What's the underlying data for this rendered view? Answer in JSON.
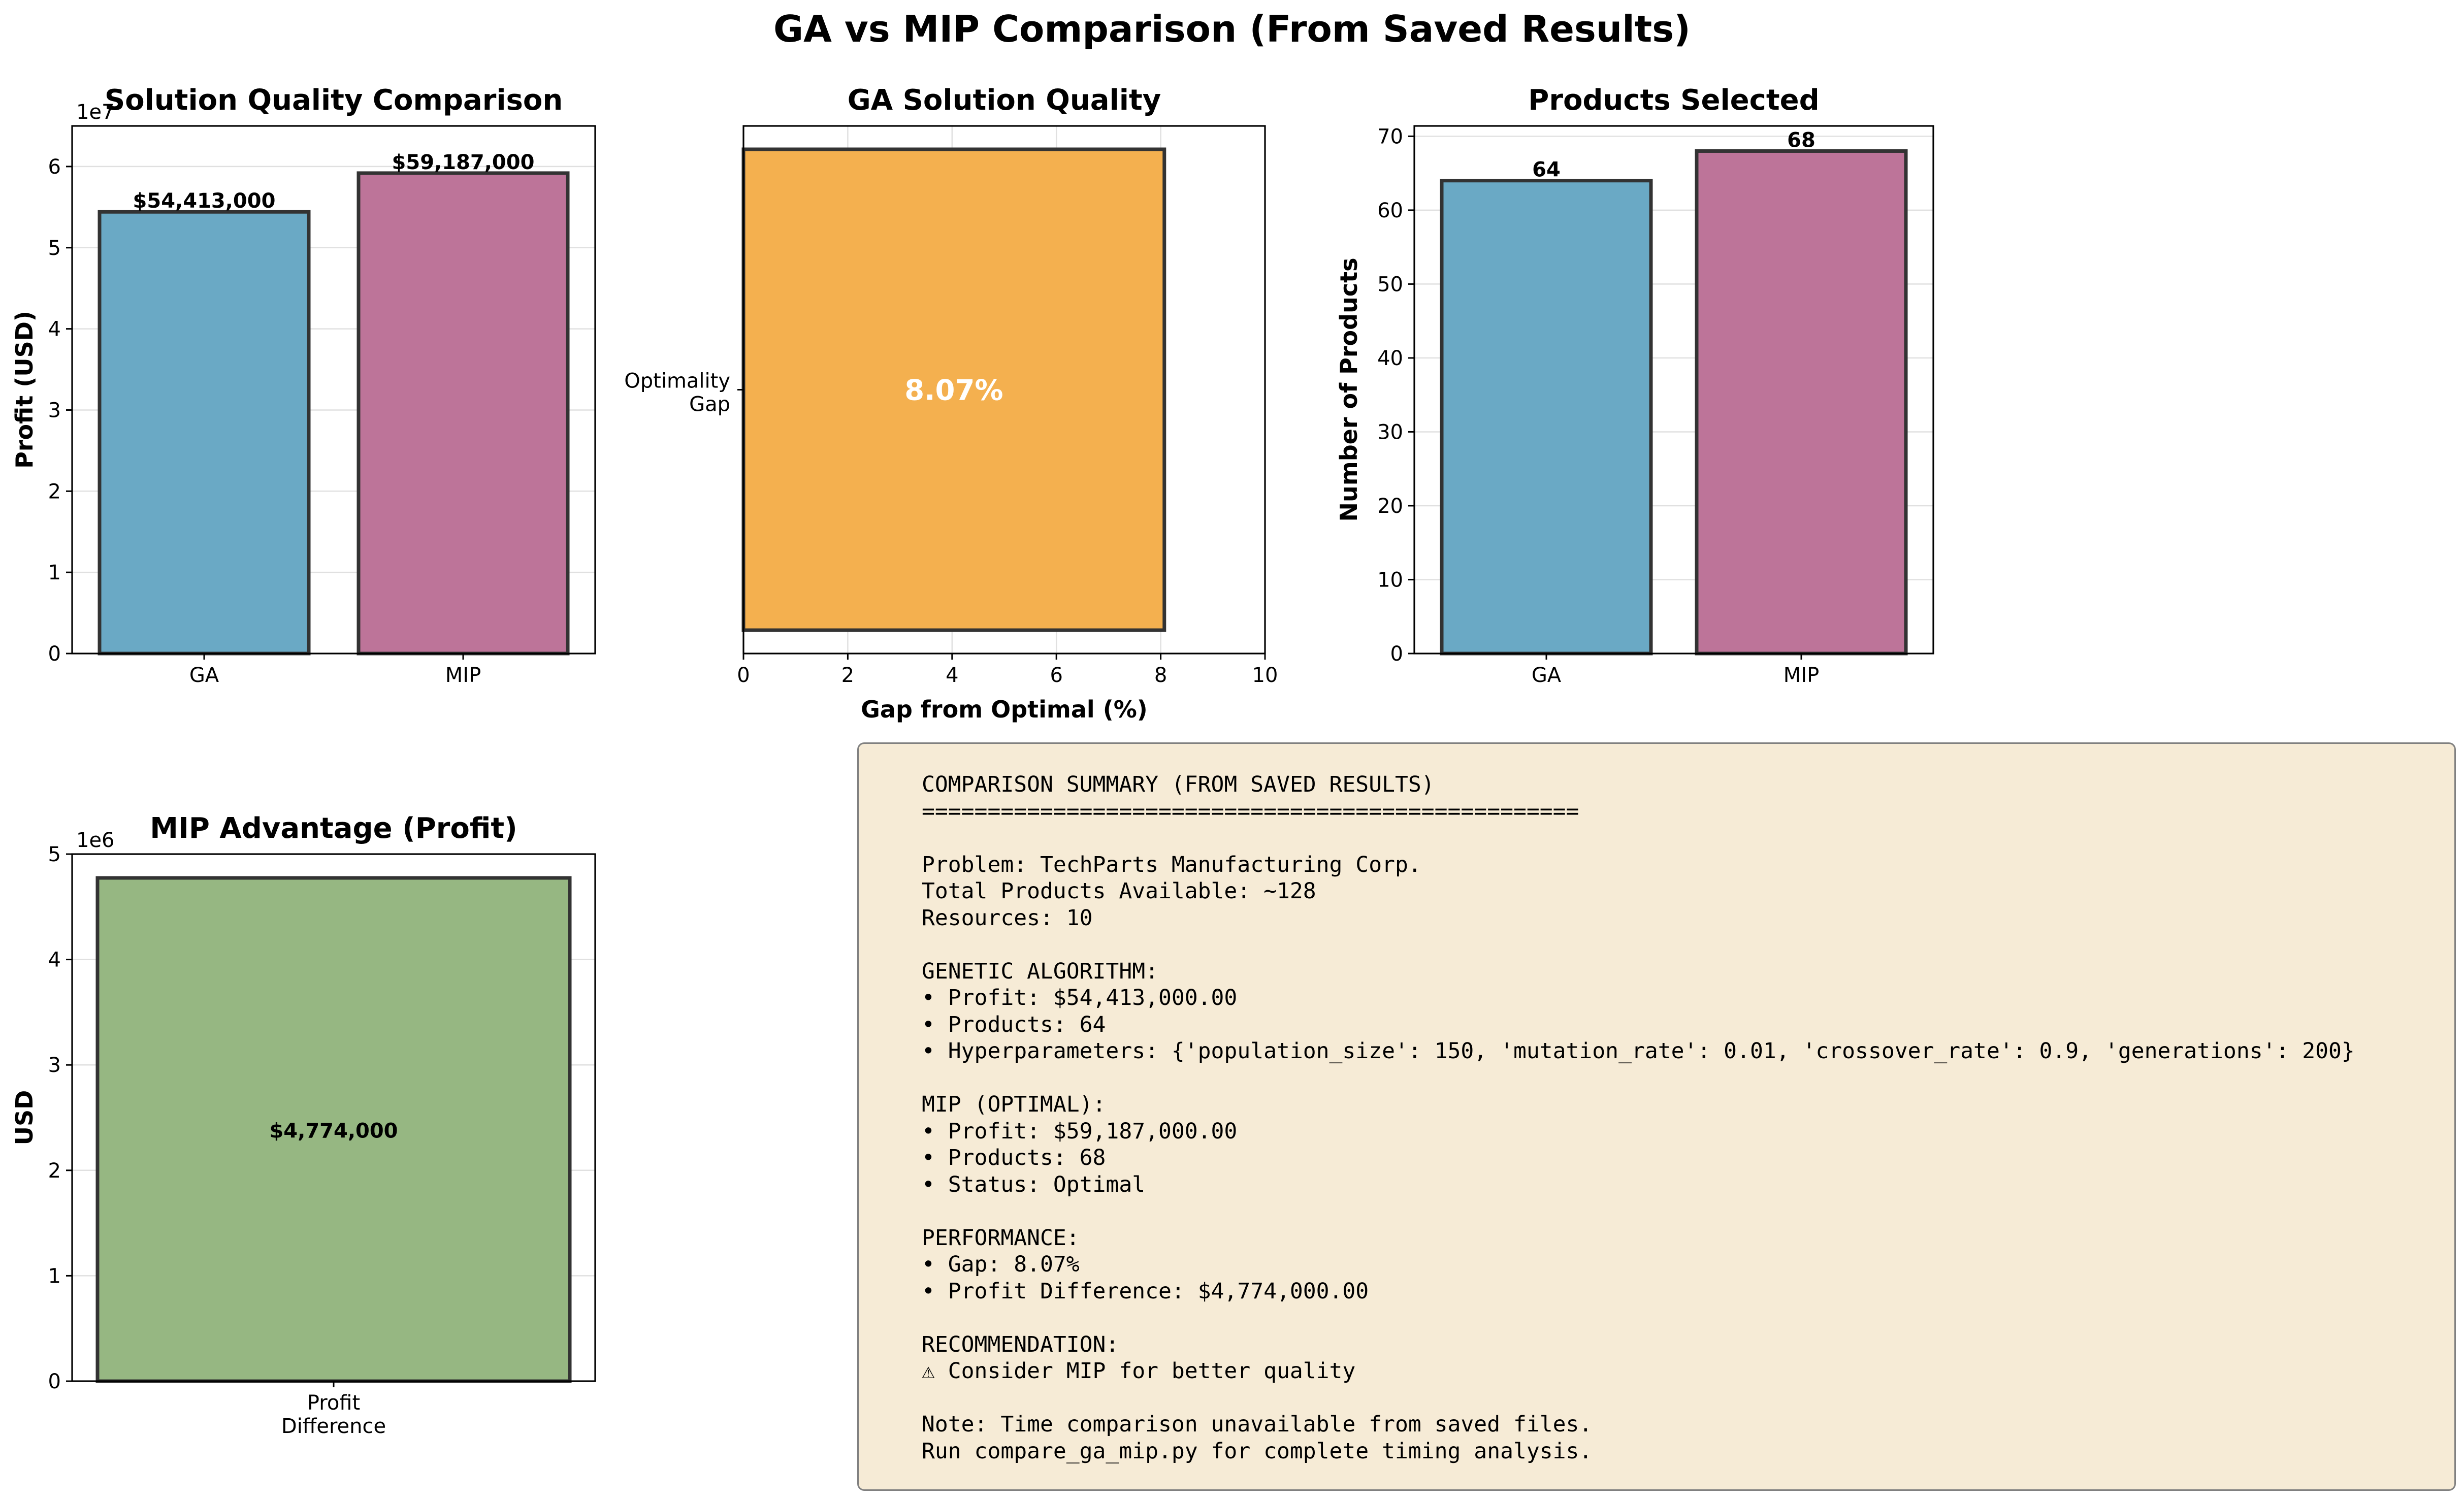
{
  "figure_title": "GA vs MIP Comparison (From Saved Results)",
  "colors": {
    "ga": "#6aa9c5",
    "mip": "#bd7499",
    "gap": "#f4b04f",
    "advantage": "#96b782",
    "summary_bg": "#f6ebd6"
  },
  "chart_data": [
    {
      "type": "bar",
      "title": "Solution Quality Comparison",
      "xlabel": "",
      "ylabel": "Profit (USD)",
      "scale_label": "1e7",
      "categories": [
        "GA",
        "MIP"
      ],
      "values": [
        54413000,
        59187000
      ],
      "value_labels": [
        "$54,413,000",
        "$59,187,000"
      ],
      "ylim": [
        0,
        65000000
      ],
      "yticks": [
        0,
        1,
        2,
        3,
        4,
        5,
        6
      ],
      "grid": true
    },
    {
      "type": "bar",
      "orientation": "horizontal",
      "title": "GA Solution Quality",
      "xlabel": "Gap from Optimal (%)",
      "ylabel": "",
      "categories": [
        "Optimality Gap"
      ],
      "category_lines": [
        "Optimality",
        "Gap"
      ],
      "values": [
        8.07
      ],
      "value_labels": [
        "8.07%"
      ],
      "xlim": [
        0,
        10
      ],
      "xticks": [
        0,
        2,
        4,
        6,
        8,
        10
      ],
      "grid": true
    },
    {
      "type": "bar",
      "title": "Products Selected",
      "xlabel": "",
      "ylabel": "Number of Products",
      "categories": [
        "GA",
        "MIP"
      ],
      "values": [
        64,
        68
      ],
      "value_labels": [
        "64",
        "68"
      ],
      "ylim": [
        0,
        71.4
      ],
      "yticks": [
        0,
        10,
        20,
        30,
        40,
        50,
        60,
        70
      ],
      "grid": true
    },
    {
      "type": "bar",
      "title": "MIP Advantage (Profit)",
      "xlabel": "",
      "ylabel": "USD",
      "scale_label": "1e6",
      "categories": [
        "Profit Difference"
      ],
      "category_lines": [
        "Profit",
        "Difference"
      ],
      "values": [
        4774000
      ],
      "value_labels": [
        "$4,774,000"
      ],
      "ylim": [
        0,
        5000000
      ],
      "yticks": [
        0,
        1,
        2,
        3,
        4,
        5
      ],
      "grid": true
    }
  ],
  "summary": {
    "lines": [
      "COMPARISON SUMMARY (FROM SAVED RESULTS)",
      "==================================================",
      "",
      "Problem: TechParts Manufacturing Corp.",
      "Total Products Available: ~128",
      "Resources: 10",
      "",
      "GENETIC ALGORITHM:",
      "• Profit: $54,413,000.00",
      "• Products: 64",
      "• Hyperparameters: {'population_size': 150, 'mutation_rate': 0.01, 'crossover_rate': 0.9, 'generations': 200}",
      "",
      "MIP (OPTIMAL):",
      "• Profit: $59,187,000.00",
      "• Products: 68",
      "• Status: Optimal",
      "",
      "PERFORMANCE:",
      "• Gap: 8.07%",
      "• Profit Difference: $4,774,000.00",
      "",
      "RECOMMENDATION:",
      "⚠ Consider MIP for better quality",
      "",
      "Note: Time comparison unavailable from saved files.",
      "Run compare_ga_mip.py for complete timing analysis."
    ]
  }
}
